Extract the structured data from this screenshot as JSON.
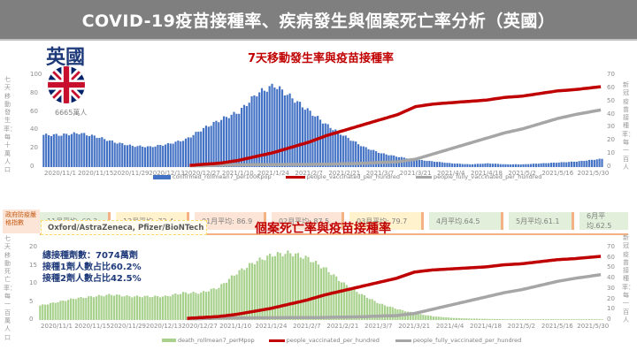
{
  "header": {
    "title": "COVID-19疫苗接種率、疾病發生與個案死亡率分析（英國）"
  },
  "country": {
    "name": "英國",
    "population": "6665萬人",
    "flag_icon": "uk-flag-icon"
  },
  "stringency": {
    "label": "政府防疫嚴格指數",
    "cells": [
      {
        "label": "11月平均: 68.3",
        "color": "#e2efda"
      },
      {
        "label": "12月平均: 72.4",
        "color": "#fff2cc"
      },
      {
        "label": "01月平均: 86.9",
        "color": "#fce4d6"
      },
      {
        "label": "02月平均: 87.5",
        "color": "#fce4d6"
      },
      {
        "label": "03月平均: 79.7",
        "color": "#fff2cc"
      },
      {
        "label": "4月平均.64.5",
        "color": "#e2efda"
      },
      {
        "label": "5月平均.61.1",
        "color": "#e2efda"
      },
      {
        "label": "6月平均.62.5",
        "color": "#e2efda"
      }
    ]
  },
  "vaccines": "Oxford/AstraZeneca, Pfizer/BioNTech",
  "stats": {
    "line1": "總接種劑數：7074萬劑",
    "line2": "接種1劑人數占比60.2%",
    "line3": "接種2劑人數占比42.5%"
  },
  "colors": {
    "cases": "#4472c4",
    "deaths": "#a9d18e",
    "vaccinated": "#c00000",
    "fully": "#a6a6a6"
  },
  "chart_data": [
    {
      "type": "bar+line",
      "title": "7天移動發生率與疫苗接種率",
      "ylabel": "七天移動發生率：每十萬人口",
      "y2label": "新冠疫苗接種率：每一百人",
      "ylim": [
        0,
        100
      ],
      "y2lim": [
        0,
        70
      ],
      "yticks": [
        "100",
        "80",
        "60",
        "40",
        "20",
        "0"
      ],
      "y2ticks": [
        "70",
        "60",
        "50",
        "40",
        "30",
        "20",
        "10",
        "0"
      ],
      "xticks": [
        "2020/11/1",
        "2020/11/15",
        "2020/11/29",
        "2020/12/13",
        "2020/12/27",
        "2021/1/10",
        "2021/1/24",
        "2021/2/7",
        "2021/2/21",
        "2021/3/7",
        "2021/3/21",
        "2021/4/4",
        "2021/4/18",
        "2021/5/2",
        "2021/5/16",
        "2021/5/30"
      ],
      "legend": [
        "confirmed_rollmean7_per100Kpop",
        "people_vaccinated_per_hundred",
        "people_fully_vaccinated_per_hundred"
      ],
      "x_days_weekly": [
        0,
        7,
        14,
        21,
        28,
        35,
        42,
        49,
        56,
        63,
        70,
        77,
        84,
        91,
        98,
        105,
        112,
        119,
        126,
        133,
        140,
        147,
        154,
        161,
        168,
        175,
        182,
        189,
        196,
        203,
        210,
        220
      ],
      "series": [
        {
          "name": "confirmed_rollmean7_per100Kpop",
          "kind": "bar",
          "axis": "left",
          "values": [
            35,
            35,
            37,
            33,
            27,
            23,
            22,
            25,
            30,
            42,
            52,
            60,
            80,
            89,
            75,
            60,
            45,
            33,
            22,
            15,
            11,
            8,
            6,
            4,
            3,
            4,
            3,
            3,
            4,
            5,
            6,
            9
          ]
        },
        {
          "name": "people_vaccinated_per_hundred",
          "kind": "line",
          "axis": "right",
          "start_day": 58,
          "values": [
            0,
            0,
            0,
            0,
            0,
            0,
            0,
            0,
            0,
            1,
            2,
            4,
            7,
            10,
            14,
            18,
            23,
            27,
            31,
            35,
            39,
            45,
            47,
            48,
            49,
            50,
            52,
            53,
            55,
            57,
            58,
            60.2
          ]
        },
        {
          "name": "people_fully_vaccinated_per_hundred",
          "kind": "line",
          "axis": "right",
          "start_day": 58,
          "values": [
            0,
            0,
            0,
            0,
            0,
            0,
            0,
            0,
            0,
            0,
            0.5,
            0.7,
            0.8,
            0.9,
            1,
            1,
            1.2,
            1.5,
            1.8,
            2.5,
            3,
            5,
            9,
            13,
            17,
            21,
            25,
            28,
            32,
            36,
            39,
            42.5
          ]
        }
      ]
    },
    {
      "type": "bar+line",
      "title": "個案死亡率與疫苗接種率",
      "ylabel": "七天移動死亡率：每一百萬人口",
      "y2label": "新冠疫苗接種率：每一百人",
      "ylim": [
        0,
        20
      ],
      "y2lim": [
        0,
        70
      ],
      "yticks": [
        "20",
        "15",
        "10",
        "5",
        "0"
      ],
      "y2ticks": [
        "70",
        "60",
        "50",
        "40",
        "30",
        "20",
        "10",
        "0"
      ],
      "xticks": [
        "2020/11/1",
        "2020/11/15",
        "2020/11/29",
        "2020/12/13",
        "2020/12/27",
        "2021/1/10",
        "2021/1/24",
        "2021/2/7",
        "2021/2/21",
        "2021/3/7",
        "2021/3/21",
        "2021/4/4",
        "2021/4/18",
        "2021/5/2",
        "2021/5/16",
        "2021/5/30"
      ],
      "legend": [
        "death_rollmean7_perMpop",
        "people_vaccinated_per_hundred",
        "people_fully_vaccinated_per_hundred"
      ],
      "x_days_weekly": [
        0,
        7,
        14,
        21,
        28,
        35,
        42,
        49,
        56,
        63,
        70,
        77,
        84,
        91,
        98,
        105,
        112,
        119,
        126,
        133,
        140,
        147,
        154,
        161,
        168,
        175,
        182,
        189,
        196,
        203,
        210,
        220
      ],
      "series": [
        {
          "name": "death_rollmean7_perMpop",
          "kind": "bar",
          "axis": "left",
          "values": [
            4,
            5,
            6,
            6.5,
            7,
            6.5,
            6.5,
            6.5,
            7.5,
            7.5,
            9,
            13,
            16,
            18,
            18.5,
            17,
            14,
            10,
            7,
            4.5,
            3,
            1.8,
            1,
            0.6,
            0.4,
            0.3,
            0.2,
            0.2,
            0.2,
            0.2,
            0.2,
            0.2
          ]
        },
        {
          "name": "people_vaccinated_per_hundred",
          "kind": "line",
          "axis": "right",
          "start_day": 58,
          "values": [
            0,
            0,
            0,
            0,
            0,
            0,
            0,
            0,
            0,
            1,
            2,
            4,
            7,
            10,
            14,
            18,
            23,
            27,
            31,
            35,
            39,
            45,
            47,
            48,
            49,
            50,
            52,
            53,
            55,
            57,
            58,
            60.2
          ]
        },
        {
          "name": "people_fully_vaccinated_per_hundred",
          "kind": "line",
          "axis": "right",
          "start_day": 58,
          "values": [
            0,
            0,
            0,
            0,
            0,
            0,
            0,
            0,
            0,
            0,
            0.5,
            0.7,
            0.8,
            0.9,
            1,
            1,
            1.2,
            1.5,
            1.8,
            2.5,
            3,
            5,
            9,
            13,
            17,
            21,
            25,
            28,
            32,
            36,
            39,
            42.5
          ]
        }
      ]
    }
  ]
}
